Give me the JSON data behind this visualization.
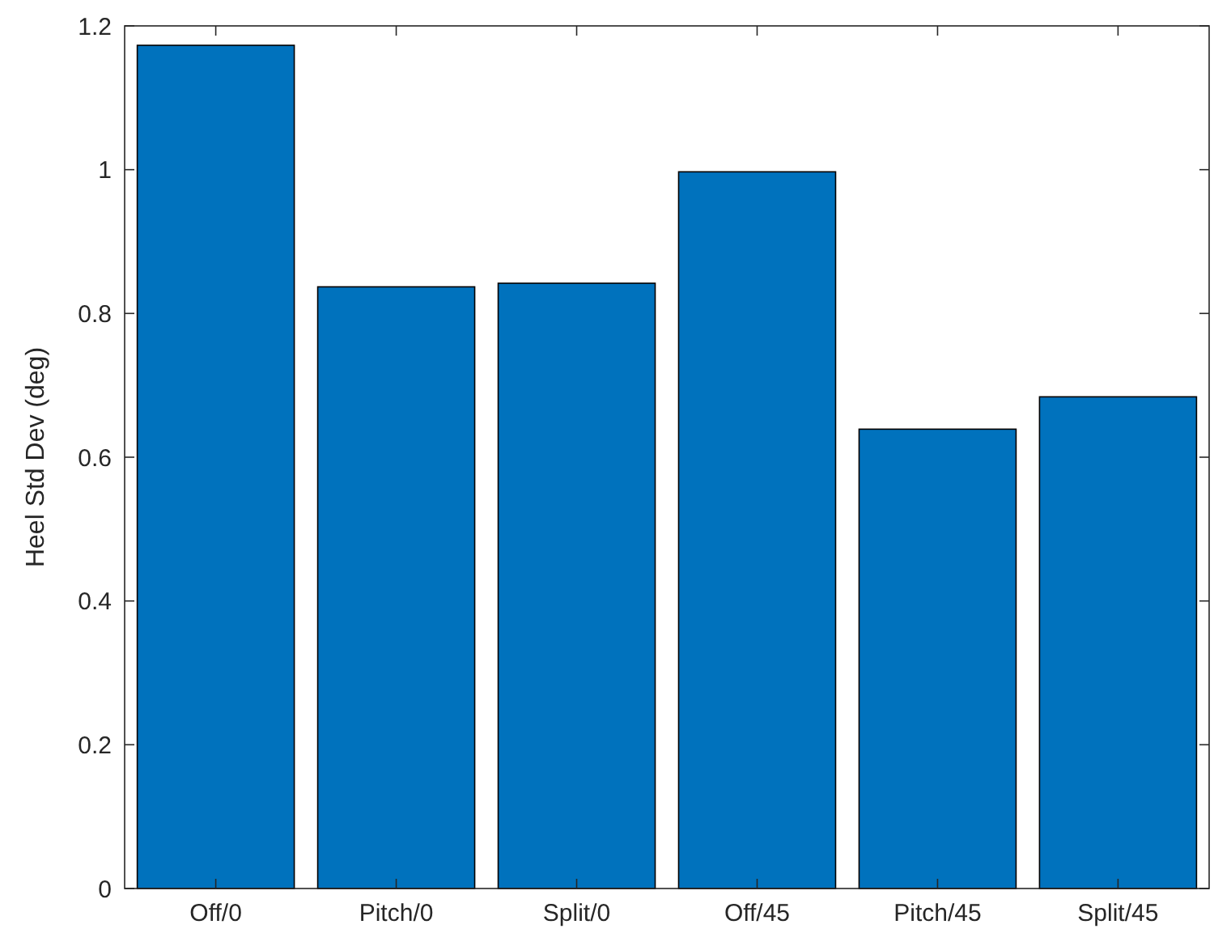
{
  "chart_data": {
    "type": "bar",
    "ylabel": "Heel Std Dev (deg)",
    "categories": [
      "Off/0",
      "Pitch/0",
      "Split/0",
      "Off/45",
      "Pitch/45",
      "Split/45"
    ],
    "values": [
      1.173,
      0.837,
      0.842,
      0.997,
      0.639,
      0.684
    ],
    "color": "#0072bd",
    "ylim": [
      0,
      1.2
    ],
    "yticks": [
      0,
      0.2,
      0.4,
      0.6,
      0.8,
      1,
      1.2
    ],
    "grid": false
  }
}
